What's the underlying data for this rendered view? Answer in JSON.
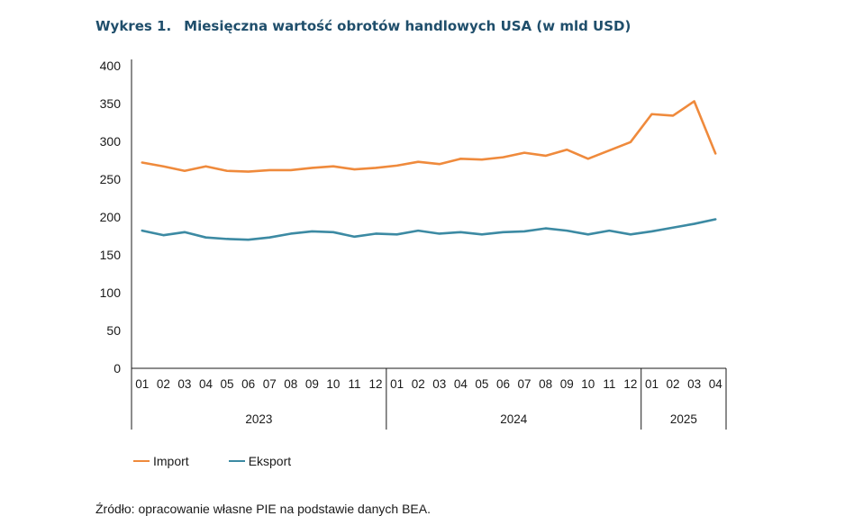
{
  "header": {
    "number": "Wykres 1.",
    "title": "Miesięczna wartość obrotów handlowych USA (w mld USD)"
  },
  "source": "Źródło: opracowanie własne PIE na podstawie danych BEA.",
  "colors": {
    "import": "#ef8a3c",
    "export": "#3c8aa3",
    "axis": "#1a1a1a",
    "title": "#1f4e6b"
  },
  "chart_data": {
    "type": "line",
    "title": "Miesięczna wartość obrotów handlowych USA (w mld USD)",
    "ylim": [
      0,
      400
    ],
    "yticks": [
      "0",
      "50",
      "100",
      "150",
      "200",
      "250",
      "300",
      "350",
      "400"
    ],
    "grid": false,
    "legend_position": "bottom-left",
    "x_months": [
      "01",
      "02",
      "03",
      "04",
      "05",
      "06",
      "07",
      "08",
      "09",
      "10",
      "11",
      "12",
      "01",
      "02",
      "03",
      "04",
      "05",
      "06",
      "07",
      "08",
      "09",
      "10",
      "11",
      "12",
      "01",
      "02",
      "03",
      "04"
    ],
    "x_years": [
      {
        "label": "2023",
        "count": 12
      },
      {
        "label": "2024",
        "count": 12
      },
      {
        "label": "2025",
        "count": 4
      }
    ],
    "series": [
      {
        "name": "Import",
        "values": [
          272,
          267,
          261,
          267,
          261,
          260,
          262,
          262,
          265,
          267,
          263,
          265,
          268,
          273,
          270,
          277,
          276,
          279,
          285,
          281,
          289,
          277,
          288,
          299,
          336,
          334,
          353,
          284
        ]
      },
      {
        "name": "Eksport",
        "values": [
          182,
          176,
          180,
          173,
          171,
          170,
          173,
          178,
          181,
          180,
          174,
          178,
          177,
          182,
          178,
          180,
          177,
          180,
          181,
          185,
          182,
          177,
          182,
          177,
          181,
          186,
          191,
          197
        ]
      }
    ]
  }
}
